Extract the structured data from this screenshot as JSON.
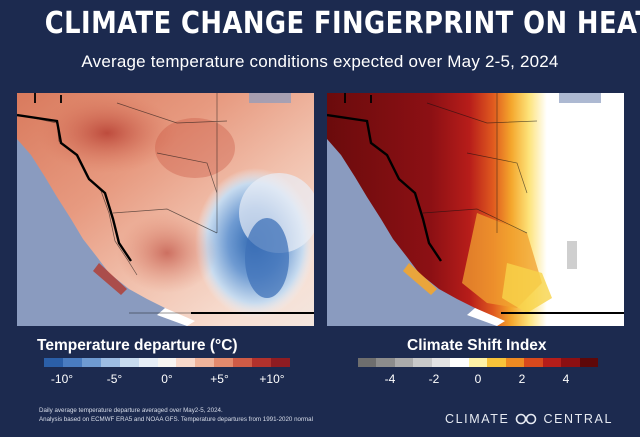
{
  "title": "CLIMATE CHANGE FINGERPRINT ON HEAT",
  "subtitle": "Average temperature conditions expected over May 2-5, 2024",
  "left_map": {
    "legend_title": "Temperature departure (°C)",
    "scale_colors": [
      "#2b5fa8",
      "#4a7cc0",
      "#6f9bd2",
      "#9dbde3",
      "#c7dbef",
      "#e6eef7",
      "#f7f5f2",
      "#f7d9cb",
      "#efb49b",
      "#e38a6d",
      "#cf5b46",
      "#b2312c",
      "#8e1c22"
    ],
    "ticks": [
      {
        "label": "-10°",
        "value": -10
      },
      {
        "label": "-5°",
        "value": -5
      },
      {
        "label": "0°",
        "value": 0
      },
      {
        "label": "+5°",
        "value": 5
      },
      {
        "label": "+10°",
        "value": 10
      }
    ]
  },
  "right_map": {
    "legend_title": "Climate Shift Index",
    "scale_colors": [
      "#6e6e6e",
      "#8c8c8c",
      "#ababab",
      "#c9c9c9",
      "#e3e3e3",
      "#ffffff",
      "#fff2a6",
      "#f8c33a",
      "#ee8a22",
      "#d8491d",
      "#b51d1a",
      "#8c0f12",
      "#5e0809"
    ],
    "ticks": [
      {
        "label": "-4",
        "value": -4
      },
      {
        "label": "-2",
        "value": -2
      },
      {
        "label": "0",
        "value": 0
      },
      {
        "label": "2",
        "value": 2
      },
      {
        "label": "4",
        "value": 4
      }
    ]
  },
  "footnote": [
    "Daily average temperature departure averaged over May2-5, 2024.",
    "Analysis based on ECMWF ERA5 and NOAA GFS. Temperature departures from 1991-2020 normal"
  ],
  "brand": {
    "left": "CLIMATE",
    "right": "CENTRAL"
  }
}
